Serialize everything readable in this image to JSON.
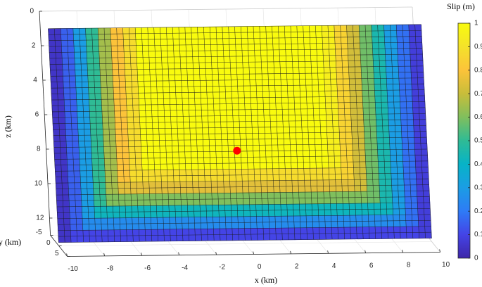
{
  "chart_data": {
    "type": "surface",
    "colorbar_title": "Slip (m)",
    "xlabel": "x (km)",
    "ylabel": "y (km)",
    "zlabel": "z (km)",
    "xlim": [
      -10,
      10
    ],
    "ylim": [
      -5,
      5
    ],
    "zlim": [
      0,
      13
    ],
    "zreversed": true,
    "xticks": [
      -10,
      -8,
      -6,
      -4,
      -2,
      0,
      2,
      4,
      6,
      8,
      10
    ],
    "yticks": [
      -5,
      0,
      5
    ],
    "zticks": [
      0,
      2,
      4,
      6,
      8,
      10,
      12
    ],
    "clim": [
      0,
      1
    ],
    "cticks": [
      0,
      0.1,
      0.2,
      0.3,
      0.4,
      0.5,
      0.6,
      0.7,
      0.8,
      0.9,
      1
    ],
    "colormap": [
      "#3e26a8",
      "#4444e6",
      "#2e7bf6",
      "#1b9de4",
      "#07b3c7",
      "#2fbb95",
      "#80bf5d",
      "#c8bd3a",
      "#fcc33a",
      "#f4e22a",
      "#f9fb0e"
    ],
    "fault_x": [
      -10,
      10
    ],
    "fault_y": 0,
    "fault_z": [
      0.4,
      12.8
    ],
    "hypocenter": {
      "x": -0.2,
      "y": 0,
      "z": 7.6,
      "color": "#ff0000"
    },
    "slip": [
      [
        0.05,
        0.15,
        0.3,
        0.5,
        0.65,
        0.8,
        0.88,
        1,
        1,
        1,
        1,
        1,
        1,
        1,
        1,
        1,
        1,
        1,
        1,
        1,
        1,
        1,
        0.95,
        0.85,
        0.72,
        0.58,
        0.45,
        0.3,
        0.18,
        0.08
      ],
      [
        0.05,
        0.15,
        0.3,
        0.5,
        0.65,
        0.8,
        0.88,
        1,
        1,
        1,
        1,
        1,
        1,
        1,
        1,
        1,
        1,
        1,
        1,
        1,
        1,
        1,
        0.95,
        0.85,
        0.72,
        0.58,
        0.45,
        0.3,
        0.18,
        0.08
      ],
      [
        0.05,
        0.15,
        0.3,
        0.5,
        0.65,
        0.8,
        0.88,
        1,
        1,
        1,
        1,
        1,
        1,
        1,
        1,
        1,
        1,
        1,
        1,
        1,
        1,
        1,
        0.95,
        0.85,
        0.72,
        0.58,
        0.45,
        0.3,
        0.18,
        0.08
      ],
      [
        0.05,
        0.15,
        0.3,
        0.5,
        0.65,
        0.8,
        0.88,
        1,
        1,
        1,
        1,
        1,
        1,
        1,
        1,
        1,
        1,
        1,
        1,
        1,
        1,
        1,
        0.95,
        0.85,
        0.72,
        0.58,
        0.45,
        0.3,
        0.18,
        0.08
      ],
      [
        0.05,
        0.15,
        0.3,
        0.5,
        0.65,
        0.8,
        0.88,
        1,
        1,
        1,
        1,
        1,
        1,
        1,
        1,
        1,
        1,
        1,
        1,
        1,
        1,
        1,
        0.95,
        0.85,
        0.72,
        0.58,
        0.45,
        0.3,
        0.18,
        0.08
      ],
      [
        0.05,
        0.15,
        0.3,
        0.5,
        0.65,
        0.8,
        0.88,
        1,
        1,
        1,
        1,
        1,
        1,
        1,
        1,
        1,
        1,
        1,
        1,
        1,
        1,
        1,
        0.95,
        0.85,
        0.72,
        0.58,
        0.45,
        0.3,
        0.18,
        0.08
      ],
      [
        0.05,
        0.15,
        0.3,
        0.5,
        0.65,
        0.8,
        0.88,
        1,
        1,
        1,
        1,
        1,
        1,
        1,
        1,
        1,
        1,
        1,
        1,
        1,
        1,
        1,
        0.95,
        0.85,
        0.72,
        0.58,
        0.45,
        0.3,
        0.18,
        0.08
      ],
      [
        0.05,
        0.15,
        0.3,
        0.5,
        0.65,
        0.8,
        0.88,
        1,
        1,
        1,
        1,
        1,
        1,
        1,
        1,
        1,
        1,
        1,
        1,
        1,
        1,
        1,
        0.95,
        0.85,
        0.72,
        0.58,
        0.45,
        0.3,
        0.18,
        0.08
      ],
      [
        0.05,
        0.15,
        0.3,
        0.5,
        0.65,
        0.8,
        0.88,
        1,
        1,
        1,
        1,
        1,
        1,
        1,
        1,
        1,
        1,
        1,
        1,
        1,
        1,
        1,
        0.95,
        0.85,
        0.72,
        0.58,
        0.45,
        0.3,
        0.18,
        0.08
      ],
      [
        0.05,
        0.15,
        0.3,
        0.5,
        0.65,
        0.8,
        0.88,
        1,
        1,
        1,
        1,
        1,
        1,
        1,
        1,
        1,
        1,
        1,
        1,
        1,
        1,
        1,
        0.95,
        0.85,
        0.72,
        0.58,
        0.45,
        0.3,
        0.18,
        0.08
      ],
      [
        0.05,
        0.15,
        0.3,
        0.5,
        0.65,
        0.8,
        0.88,
        1,
        1,
        1,
        1,
        1,
        1,
        1,
        1,
        1,
        1,
        1,
        1,
        1,
        1,
        1,
        0.95,
        0.85,
        0.72,
        0.58,
        0.45,
        0.3,
        0.18,
        0.08
      ],
      [
        0.05,
        0.15,
        0.3,
        0.5,
        0.65,
        0.8,
        0.88,
        1,
        1,
        1,
        1,
        1,
        1,
        1,
        1,
        1,
        1,
        1,
        1,
        1,
        1,
        1,
        0.95,
        0.85,
        0.72,
        0.58,
        0.45,
        0.3,
        0.18,
        0.08
      ],
      [
        0.05,
        0.15,
        0.3,
        0.5,
        0.65,
        0.8,
        0.88,
        0.88,
        0.88,
        0.88,
        0.88,
        0.88,
        0.88,
        0.88,
        0.88,
        0.88,
        0.88,
        0.88,
        0.88,
        0.88,
        0.88,
        0.88,
        0.88,
        0.85,
        0.72,
        0.58,
        0.45,
        0.3,
        0.18,
        0.08
      ],
      [
        0.05,
        0.15,
        0.3,
        0.5,
        0.65,
        0.75,
        0.75,
        0.75,
        0.75,
        0.75,
        0.75,
        0.75,
        0.75,
        0.75,
        0.75,
        0.75,
        0.75,
        0.75,
        0.75,
        0.75,
        0.75,
        0.75,
        0.75,
        0.75,
        0.72,
        0.58,
        0.45,
        0.3,
        0.18,
        0.08
      ],
      [
        0.05,
        0.15,
        0.3,
        0.5,
        0.6,
        0.6,
        0.6,
        0.6,
        0.6,
        0.6,
        0.6,
        0.6,
        0.6,
        0.6,
        0.6,
        0.6,
        0.6,
        0.6,
        0.6,
        0.6,
        0.6,
        0.6,
        0.6,
        0.6,
        0.6,
        0.58,
        0.45,
        0.3,
        0.18,
        0.08
      ],
      [
        0.05,
        0.15,
        0.3,
        0.42,
        0.42,
        0.42,
        0.42,
        0.42,
        0.42,
        0.42,
        0.42,
        0.42,
        0.42,
        0.42,
        0.42,
        0.42,
        0.42,
        0.42,
        0.42,
        0.42,
        0.42,
        0.42,
        0.42,
        0.42,
        0.42,
        0.42,
        0.42,
        0.3,
        0.18,
        0.08
      ],
      [
        0.05,
        0.15,
        0.25,
        0.25,
        0.25,
        0.25,
        0.25,
        0.25,
        0.25,
        0.25,
        0.25,
        0.25,
        0.25,
        0.25,
        0.25,
        0.25,
        0.25,
        0.25,
        0.25,
        0.25,
        0.25,
        0.25,
        0.25,
        0.25,
        0.25,
        0.25,
        0.25,
        0.25,
        0.18,
        0.08
      ],
      [
        0.05,
        0.1,
        0.1,
        0.1,
        0.1,
        0.1,
        0.1,
        0.1,
        0.1,
        0.1,
        0.1,
        0.1,
        0.1,
        0.1,
        0.1,
        0.1,
        0.1,
        0.1,
        0.1,
        0.1,
        0.1,
        0.1,
        0.1,
        0.1,
        0.1,
        0.1,
        0.1,
        0.1,
        0.1,
        0.08
      ]
    ]
  }
}
